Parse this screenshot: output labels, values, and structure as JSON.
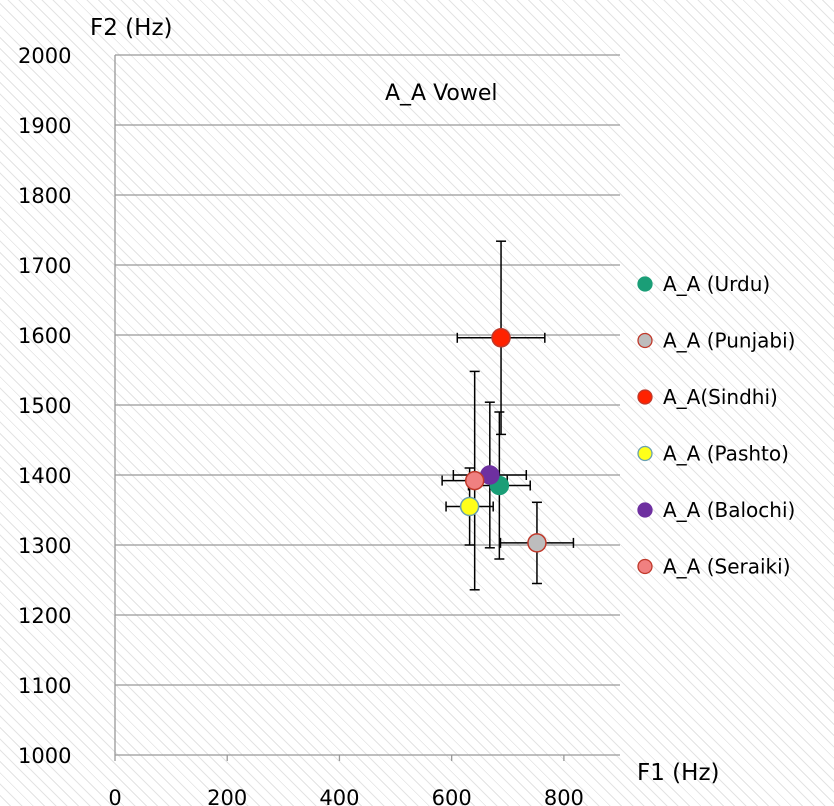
{
  "chart_data": {
    "type": "scatter",
    "title": "A_A Vowel",
    "xlabel": "F1 (Hz)",
    "ylabel": "F2 (Hz)",
    "xlim": [
      0,
      900
    ],
    "ylim": [
      1000,
      2000
    ],
    "xticks": [
      0,
      200,
      400,
      600,
      800
    ],
    "yticks": [
      1000,
      1100,
      1200,
      1300,
      1400,
      1500,
      1600,
      1700,
      1800,
      1900,
      2000
    ],
    "grid": "horizontal",
    "legend_position": "right",
    "error_bars": true,
    "series": [
      {
        "name": "A_A (Urdu)",
        "x": 685,
        "y": 1385,
        "x_err": 55,
        "y_err": 105,
        "color": "#1a9e77",
        "stroke": "#1a9e77"
      },
      {
        "name": "A_A (Punjabi)",
        "x": 752,
        "y": 1303,
        "x_err": 65,
        "y_err": 58,
        "color": "#bdbdbd",
        "stroke": "#c0392b"
      },
      {
        "name": "A_A(Sindhi)",
        "x": 688,
        "y": 1596,
        "x_err": 78,
        "y_err": 138,
        "color": "#ff2200",
        "stroke": "#c0392b"
      },
      {
        "name": "A_A (Pashto)",
        "x": 632,
        "y": 1355,
        "x_err": 42,
        "y_err": 55,
        "color": "#ffff1a",
        "stroke": "#6aa0b0"
      },
      {
        "name": "A_A (Balochi)",
        "x": 668,
        "y": 1400,
        "x_err": 65,
        "y_err": 104,
        "color": "#6e30a0",
        "stroke": "#6e30a0"
      },
      {
        "name": "A_A (Seraiki)",
        "x": 641,
        "y": 1392,
        "x_err": 58,
        "y_err": 156,
        "color": "#f08080",
        "stroke": "#c0392b"
      }
    ]
  }
}
